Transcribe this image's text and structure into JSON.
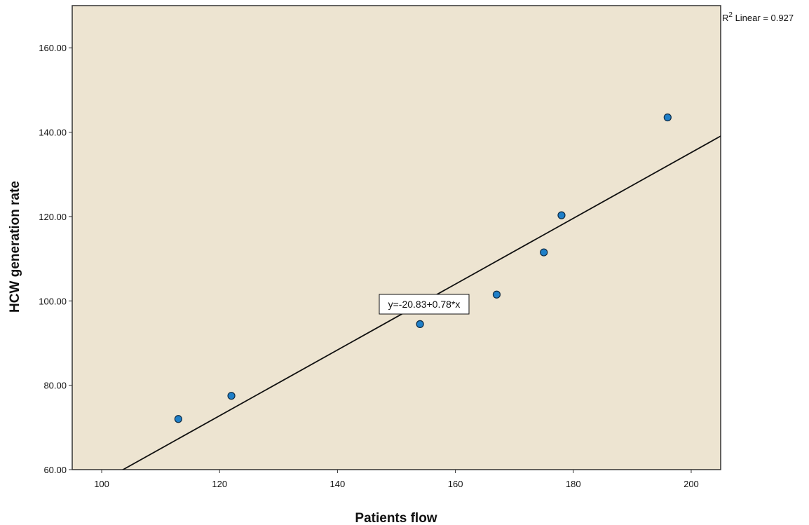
{
  "chart_data": {
    "type": "scatter",
    "xlabel": "Patients flow",
    "ylabel": "HCW generation rate",
    "xlim": [
      95,
      205
    ],
    "ylim": [
      60,
      170
    ],
    "x_ticks": [
      "100",
      "120",
      "140",
      "160",
      "180",
      "200"
    ],
    "y_ticks": [
      "60.00",
      "80.00",
      "100.00",
      "120.00",
      "140.00",
      "160.00"
    ],
    "points": [
      {
        "x": 113,
        "y": 72.0
      },
      {
        "x": 122,
        "y": 77.5
      },
      {
        "x": 154,
        "y": 94.5
      },
      {
        "x": 167,
        "y": 101.5
      },
      {
        "x": 175,
        "y": 111.5
      },
      {
        "x": 178,
        "y": 120.3
      },
      {
        "x": 196,
        "y": 143.5
      }
    ],
    "fit_line": {
      "intercept": -20.83,
      "slope": 0.78
    },
    "equation_label": "y=-20.83+0.78*x",
    "r2_prefix": "R",
    "r2_superscript": "2",
    "r2_suffix": " Linear = 0.927",
    "colors": {
      "plot_background": "#ede4d1",
      "point_fill": "#1f7fc8",
      "point_stroke": "#0d2a44",
      "line": "#111111"
    }
  }
}
